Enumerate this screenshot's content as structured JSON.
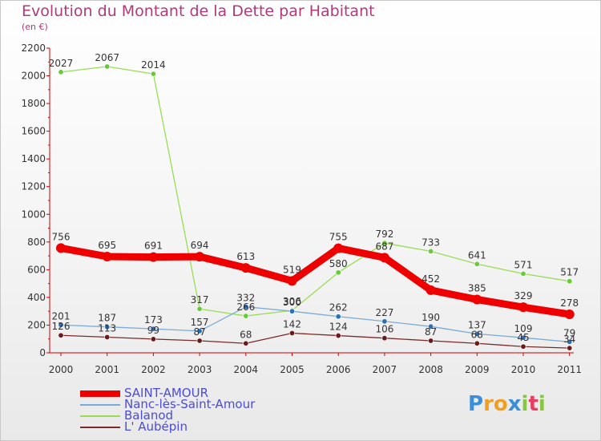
{
  "title": "Evolution du Montant de la Dette par Habitant",
  "subtitle": "(en €)",
  "colors": {
    "title": "#b03a7a",
    "axis": "#cc0000",
    "legend_text": "#4b4bd8",
    "background_top": "#ffffff",
    "background_bottom": "#e9e9e9"
  },
  "chart_data": {
    "type": "line",
    "title": "Evolution du Montant de la Dette par Habitant",
    "subtitle": "(en €)",
    "xlabel": "",
    "ylabel": "",
    "ylim": [
      0,
      2200
    ],
    "yticks": [
      0,
      200,
      400,
      600,
      800,
      1000,
      1200,
      1400,
      1600,
      1800,
      2000,
      2200
    ],
    "grid": false,
    "legend_position": "bottom-left",
    "categories": [
      "2000",
      "2001",
      "2002",
      "2003",
      "2004",
      "2005",
      "2006",
      "2007",
      "2008",
      "2009",
      "2010",
      "2011"
    ],
    "series": [
      {
        "name": "SAINT-AMOUR",
        "color": "#ee0000",
        "marker_color": "#ee0000",
        "values": [
          756,
          695,
          691,
          694,
          613,
          519,
          755,
          687,
          452,
          385,
          329,
          278
        ]
      },
      {
        "name": "Nanc-lès-Saint-Amour",
        "color": "#7aaad6",
        "marker_color": "#2a6fb8",
        "values": [
          201,
          187,
          173,
          157,
          332,
          300,
          262,
          227,
          190,
          137,
          109,
          79
        ]
      },
      {
        "name": "Balanod",
        "color": "#99dd55",
        "marker_color": "#66cc33",
        "values": [
          2027,
          2067,
          2014,
          317,
          266,
          306,
          580,
          792,
          733,
          641,
          571,
          517
        ]
      },
      {
        "name": "L' Aubépin",
        "color": "#7a2a2a",
        "marker_color": "#6a1a1a",
        "values": [
          126,
          113,
          99,
          87,
          68,
          142,
          124,
          106,
          87,
          68,
          45,
          34
        ]
      }
    ]
  },
  "logo": {
    "letters": [
      "P",
      "r",
      "o",
      "x",
      "i",
      "t",
      "i"
    ],
    "colors": [
      "#3a8fd8",
      "#f0a020",
      "#f0a020",
      "#3a8fd8",
      "#88c540",
      "#e84060",
      "#88c540"
    ]
  }
}
